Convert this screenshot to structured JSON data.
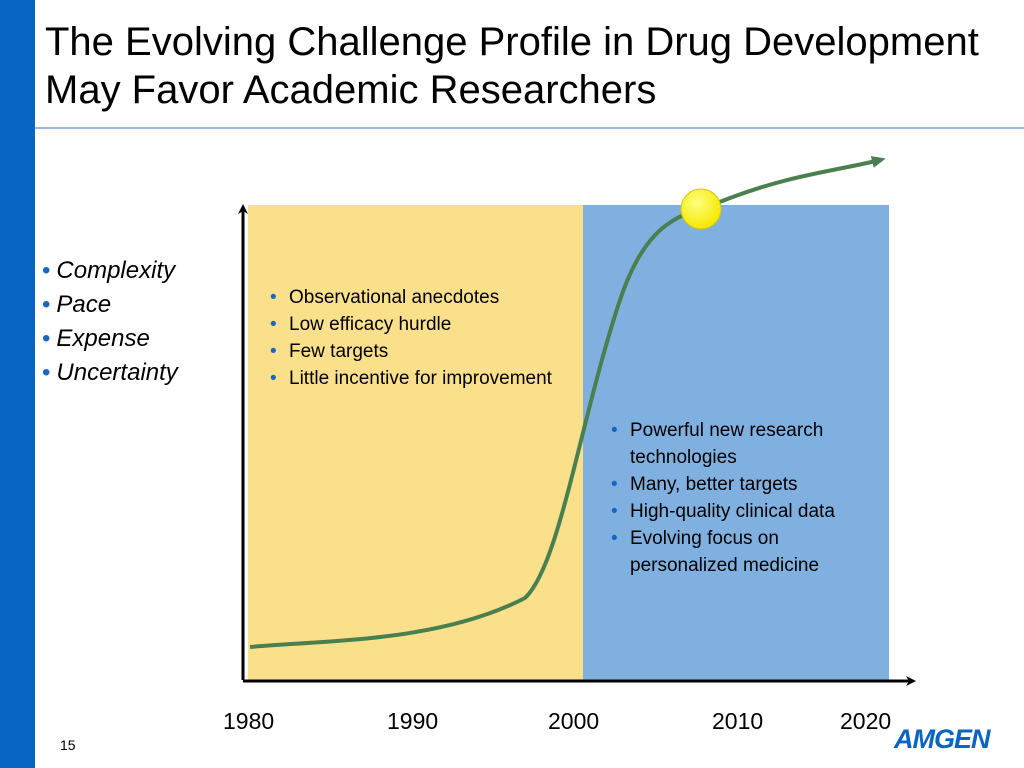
{
  "slide": {
    "title": "The Evolving Challenge Profile in Drug Development May Favor Academic Researchers",
    "page_number": "15",
    "logo_text": "AMGEN"
  },
  "challenges": [
    "Complexity",
    "Pace",
    "Expense",
    "Uncertainty"
  ],
  "left_panel": {
    "color": "#fbe08c",
    "items": [
      "Observational anecdotes",
      "Low efficacy hurdle",
      "Few targets",
      "Little incentive for improvement"
    ]
  },
  "right_panel": {
    "color": "#80b0e0",
    "items": [
      "Powerful new research technologies",
      "Many, better targets",
      "High-quality clinical data",
      "Evolving focus on personalized medicine"
    ]
  },
  "x_axis": {
    "ticks": [
      "1980",
      "1990",
      "2000",
      "2010",
      "2020"
    ]
  },
  "colors": {
    "curve": "#4a8050",
    "marker": "#f5f000",
    "accent": "#0a64c4"
  },
  "icons": {
    "curve_arrow": "arrow-head",
    "marker": "yellow-circle"
  }
}
